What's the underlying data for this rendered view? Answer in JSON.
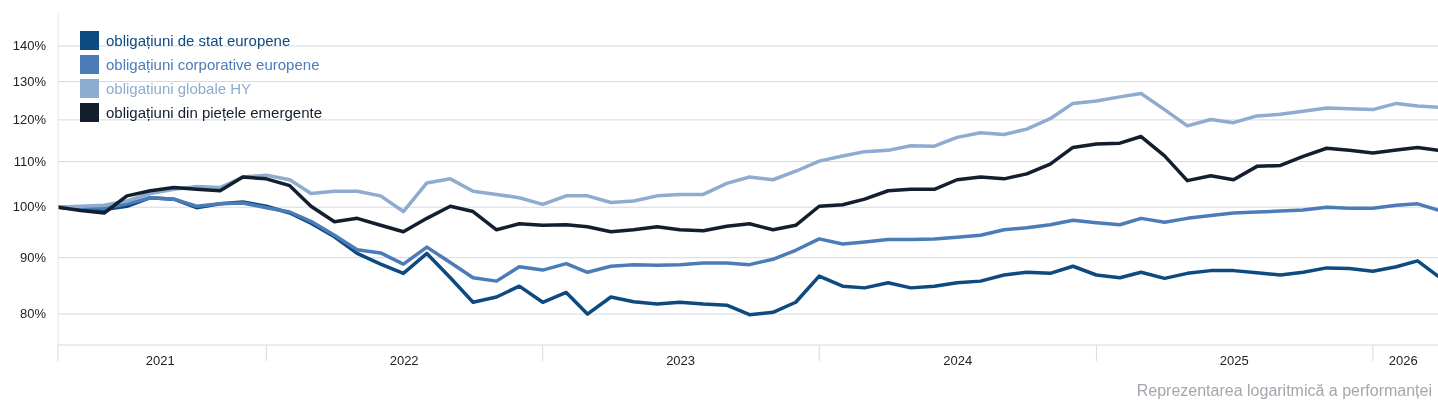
{
  "chart_data": {
    "type": "line",
    "x": [
      "2021-04-01",
      "2021-05-01",
      "2021-06-01",
      "2021-07-01",
      "2021-08-01",
      "2021-09-01",
      "2021-10-01",
      "2021-11-01",
      "2021-12-01",
      "2022-01-01",
      "2022-02-01",
      "2022-03-01",
      "2022-04-01",
      "2022-05-01",
      "2022-06-01",
      "2022-07-01",
      "2022-08-01",
      "2022-09-01",
      "2022-10-01",
      "2022-11-01",
      "2022-12-01",
      "2023-01-01",
      "2023-02-01",
      "2023-03-01",
      "2023-04-01",
      "2023-05-01",
      "2023-06-01",
      "2023-07-01",
      "2023-08-01",
      "2023-09-01",
      "2023-10-01",
      "2023-11-01",
      "2023-12-01",
      "2024-01-01",
      "2024-02-01",
      "2024-03-01",
      "2024-04-01",
      "2024-05-01",
      "2024-06-01",
      "2024-07-01",
      "2024-08-01",
      "2024-09-01",
      "2024-10-01",
      "2024-11-01",
      "2024-12-01",
      "2025-01-01",
      "2025-02-01",
      "2025-03-01",
      "2025-04-01",
      "2025-05-01",
      "2025-06-01",
      "2025-07-01",
      "2025-08-01",
      "2025-09-01",
      "2025-10-01",
      "2025-11-01",
      "2025-12-01",
      "2026-01-01",
      "2026-02-01",
      "2026-03-01",
      "2026-03-28"
    ],
    "series": [
      {
        "name": "obligațiuni de stat europene",
        "color": "#0d4a80",
        "values": [
          100,
          99.5,
          99.5,
          100.2,
          102,
          101.7,
          99.9,
          100.7,
          101.1,
          100.2,
          98.8,
          96.7,
          94,
          90.8,
          88.8,
          87.1,
          90.8,
          86.3,
          82,
          82.9,
          84.8,
          82,
          83.7,
          80,
          82.9,
          82.1,
          81.7,
          82,
          81.7,
          81.5,
          79.9,
          80.3,
          82,
          86.6,
          84.8,
          84.5,
          85.4,
          84.5,
          84.8,
          85.4,
          85.7,
          86.8,
          87.3,
          87.1,
          88.4,
          86.8,
          86.3,
          87.3,
          86.2,
          87.1,
          87.6,
          87.6,
          87.2,
          86.8,
          87.3,
          88.1,
          88,
          87.5,
          88.3,
          89.4,
          86.6
        ]
      },
      {
        "name": "obligațiuni corporative europene",
        "color": "#4b7cb8",
        "values": [
          100,
          100,
          99.8,
          100.7,
          102,
          101.7,
          100.2,
          100.7,
          100.9,
          99.9,
          99,
          97.1,
          94.3,
          91.5,
          90.9,
          88.8,
          92,
          89.1,
          86.3,
          85.7,
          88.3,
          87.7,
          88.9,
          87.3,
          88.4,
          88.7,
          88.6,
          88.7,
          89,
          89,
          88.7,
          89.7,
          91.4,
          93.6,
          92.6,
          93,
          93.5,
          93.5,
          93.6,
          93.9,
          94.3,
          95.4,
          95.8,
          96.4,
          97.3,
          96.8,
          96.4,
          97.7,
          96.9,
          97.7,
          98.3,
          98.8,
          99,
          99.2,
          99.4,
          100,
          99.8,
          99.8,
          100.4,
          100.7,
          99.4
        ]
      },
      {
        "name": "obligatiuni globale HY",
        "color": "#8eabd0",
        "values": [
          100,
          100.2,
          100.4,
          101.3,
          102.9,
          103.8,
          104.4,
          104.2,
          106.5,
          106.9,
          105.9,
          102.9,
          103.4,
          103.4,
          102.4,
          99.1,
          105.2,
          106.1,
          103.4,
          102.7,
          102,
          100.6,
          102.4,
          102.4,
          101,
          101.3,
          102.4,
          102.7,
          102.7,
          105.1,
          106.5,
          105.9,
          107.8,
          110.1,
          111.3,
          112.3,
          112.6,
          113.7,
          113.6,
          115.7,
          116.8,
          116.4,
          117.7,
          120.3,
          124.2,
          124.8,
          125.9,
          126.8,
          122.6,
          118.5,
          120.1,
          119.3,
          121,
          121.4,
          122.2,
          123,
          122.8,
          122.6,
          124.2,
          123.5,
          123.2
        ]
      },
      {
        "name": "obligațiuni din piețele emergente",
        "color": "#131f2e",
        "values": [
          100,
          99.3,
          98.8,
          102.4,
          103.5,
          104.2,
          103.8,
          103.5,
          106.5,
          106.1,
          104.6,
          100.2,
          97,
          97.7,
          96.3,
          95,
          97.7,
          100.2,
          99.1,
          95.4,
          96.6,
          96.3,
          96.4,
          96,
          95,
          95.4,
          96,
          95.4,
          95.2,
          96.1,
          96.6,
          95.4,
          96.3,
          100.2,
          100.5,
          101.7,
          103.5,
          103.8,
          103.8,
          105.9,
          106.5,
          106.1,
          107.2,
          109.4,
          113.3,
          114.1,
          114.3,
          115.9,
          111.3,
          105.7,
          106.8,
          105.9,
          108.9,
          109.1,
          111.2,
          113.1,
          112.6,
          112,
          112.7,
          113.3,
          112.6
        ]
      }
    ],
    "log": "y",
    "xlim": [
      "2021-04-01",
      "2026-03-28"
    ],
    "xticks": [
      {
        "value": "2021-04-01",
        "label": null
      },
      {
        "value": "2022-01-01",
        "label": null
      },
      {
        "value": "2023-01-01",
        "label": null
      },
      {
        "value": "2024-01-01",
        "label": null
      },
      {
        "value": "2025-01-01",
        "label": null
      },
      {
        "value": "2026-01-01",
        "label": null
      },
      {
        "value": "2021-08-14",
        "label": "2021"
      },
      {
        "value": "2022-07-02",
        "label": "2022"
      },
      {
        "value": "2023-07-02",
        "label": "2023"
      },
      {
        "value": "2024-07-02",
        "label": "2024"
      },
      {
        "value": "2025-07-02",
        "label": "2025"
      },
      {
        "value": "2026-02-10",
        "label": "2026"
      }
    ],
    "ylim": [
      75,
      150
    ],
    "yticks": [
      {
        "value": 80,
        "label": "80%"
      },
      {
        "value": 90,
        "label": "90%"
      },
      {
        "value": 100,
        "label": "100%"
      },
      {
        "value": 110,
        "label": "110%"
      },
      {
        "value": 120,
        "label": "120%"
      },
      {
        "value": 130,
        "label": "130%"
      },
      {
        "value": 140,
        "label": "140%"
      }
    ],
    "grid": "y",
    "legend": "top left",
    "annotations": [
      "Reprezentarea logaritmică a performanței"
    ]
  }
}
